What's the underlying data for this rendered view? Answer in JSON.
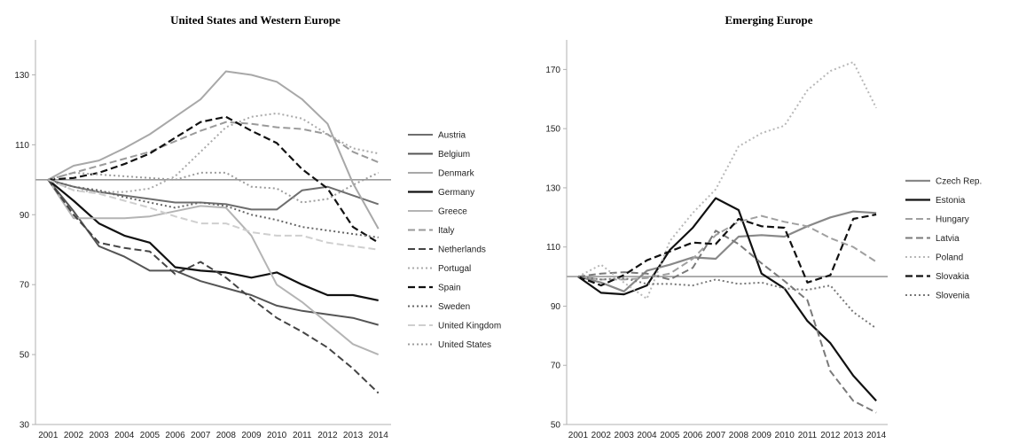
{
  "chart_data": [
    {
      "type": "line",
      "title": "United States and Western  Europe",
      "xlabel": "",
      "ylabel": "",
      "x": [
        "2001",
        "2002",
        "2003",
        "2004",
        "2005",
        "2006",
        "2007",
        "2008",
        "2009",
        "2010",
        "2011",
        "2012",
        "2013",
        "2014"
      ],
      "ylim": [
        30,
        140
      ],
      "yticks": [
        30,
        50,
        70,
        90,
        110,
        130
      ],
      "reference_line": 100,
      "grid": false,
      "legend": "right",
      "series": [
        {
          "name": "Austria",
          "color": "#6e6e6e",
          "dash": "solid",
          "width": 2.0,
          "values": [
            100,
            98,
            96.5,
            95.5,
            94.5,
            93.5,
            93.5,
            93,
            91.5,
            91.5,
            97,
            98,
            95.5,
            93
          ]
        },
        {
          "name": "Belgium",
          "color": "#555555",
          "dash": "solid",
          "width": 2.0,
          "values": [
            100,
            91,
            81,
            78,
            74,
            74,
            71,
            69,
            67,
            64,
            62.5,
            61.5,
            60.5,
            58.5
          ]
        },
        {
          "name": "Denmark",
          "color": "#a8a8a8",
          "dash": "solid",
          "width": 2.0,
          "values": [
            100,
            104,
            105.5,
            109,
            113,
            118,
            123,
            131,
            130,
            128,
            123,
            116,
            99,
            86
          ]
        },
        {
          "name": "Germany",
          "color": "#111111",
          "dash": "solid",
          "width": 2.2,
          "values": [
            100,
            94,
            87.5,
            84,
            82,
            75,
            74,
            73.5,
            72,
            73.5,
            70,
            67,
            67,
            65.5
          ]
        },
        {
          "name": "Greece",
          "color": "#b4b4b4",
          "dash": "solid",
          "width": 2.0,
          "values": [
            100,
            89,
            89,
            89,
            89.5,
            91,
            92.5,
            92,
            84,
            70,
            65,
            59,
            53,
            50
          ]
        },
        {
          "name": "Italy",
          "color": "#9a9a9a",
          "dash": "longdash",
          "width": 2.0,
          "values": [
            100,
            102,
            104,
            106,
            108,
            111,
            114,
            116.5,
            116,
            115,
            114.5,
            113,
            108,
            105
          ]
        },
        {
          "name": "Netherlands",
          "color": "#444444",
          "dash": "longdash",
          "width": 2.0,
          "values": [
            100,
            90,
            82,
            80.5,
            79.5,
            73,
            76.5,
            72,
            66,
            60.5,
            56.5,
            52,
            46,
            39
          ]
        },
        {
          "name": "Portugal",
          "color": "#aaaaaa",
          "dash": "dot",
          "width": 2.0,
          "values": [
            100,
            97,
            96.5,
            96.5,
            97.5,
            101,
            108,
            115,
            118,
            119,
            117.5,
            113,
            109,
            107.5
          ]
        },
        {
          "name": "Spain",
          "color": "#111111",
          "dash": "longdash",
          "width": 2.2,
          "values": [
            100,
            100.5,
            102,
            104.5,
            107.5,
            112,
            116.5,
            118,
            114,
            110.5,
            103,
            97.5,
            86.5,
            82
          ]
        },
        {
          "name": "Sweden",
          "color": "#666666",
          "dash": "dot",
          "width": 2.0,
          "values": [
            100,
            98,
            97,
            95,
            93.5,
            92,
            93.5,
            92.5,
            90,
            88.5,
            86.5,
            85.5,
            84.5,
            83.5
          ]
        },
        {
          "name": "United Kingdom",
          "color": "#cfcfcf",
          "dash": "longdash",
          "width": 2.0,
          "values": [
            100,
            97,
            96,
            94,
            92,
            89.5,
            87.5,
            87.5,
            85,
            84,
            84,
            82,
            81,
            80
          ]
        },
        {
          "name": "United States",
          "color": "#9c9c9c",
          "dash": "dot",
          "width": 2.0,
          "values": [
            100,
            102,
            101.5,
            101,
            100.5,
            100,
            102,
            102,
            98,
            97.5,
            93.5,
            94.5,
            98.5,
            102
          ]
        }
      ]
    },
    {
      "type": "line",
      "title": "Emerging Europe",
      "xlabel": "",
      "ylabel": "",
      "x": [
        "2001",
        "2002",
        "2003",
        "2004",
        "2005",
        "2006",
        "2007",
        "2008",
        "2009",
        "2010",
        "2011",
        "2012",
        "2013",
        "2014"
      ],
      "ylim": [
        50,
        180
      ],
      "yticks": [
        50,
        70,
        90,
        110,
        130,
        150,
        170
      ],
      "reference_line": 100,
      "grid": false,
      "legend": "right",
      "series": [
        {
          "name": "Czech Rep.",
          "color": "#888888",
          "dash": "solid",
          "width": 2.2,
          "values": [
            100,
            98,
            95,
            102,
            104,
            106.5,
            106,
            113.5,
            114,
            113.5,
            117,
            120,
            122,
            121.5
          ]
        },
        {
          "name": "Estonia",
          "color": "#111111",
          "dash": "solid",
          "width": 2.2,
          "values": [
            100,
            94.5,
            94,
            97,
            109,
            116.5,
            126.5,
            122.5,
            101,
            96,
            85,
            77.5,
            66.5,
            58
          ]
        },
        {
          "name": "Hungary",
          "color": "#a0a0a0",
          "dash": "longdash",
          "width": 2.0,
          "values": [
            100,
            99,
            99,
            99.5,
            101,
            106,
            114,
            118.5,
            120.5,
            118.5,
            117,
            113,
            110,
            105
          ]
        },
        {
          "name": "Latvia",
          "color": "#7a7a7a",
          "dash": "longdash",
          "width": 2.0,
          "values": [
            100,
            101,
            101.5,
            101,
            99,
            103,
            115.5,
            111,
            104.5,
            98.5,
            92,
            68,
            58,
            54
          ]
        },
        {
          "name": "Poland",
          "color": "#b8b8b8",
          "dash": "dot",
          "width": 2.0,
          "values": [
            100,
            104,
            98,
            92.5,
            112,
            121.5,
            129.5,
            144,
            148.5,
            151,
            163,
            169.5,
            172.5,
            157
          ]
        },
        {
          "name": "Slovakia",
          "color": "#111111",
          "dash": "longdash",
          "width": 2.2,
          "values": [
            100,
            97,
            100.5,
            105.5,
            108.5,
            111.5,
            111,
            119.5,
            117,
            116.5,
            98,
            100.5,
            119.5,
            121
          ]
        },
        {
          "name": "Slovenia",
          "color": "#777777",
          "dash": "dot",
          "width": 2.0,
          "values": [
            100,
            99,
            99.5,
            97.5,
            97.5,
            97,
            99,
            97.5,
            98,
            96,
            95.5,
            97,
            88,
            82.5
          ]
        }
      ]
    }
  ]
}
